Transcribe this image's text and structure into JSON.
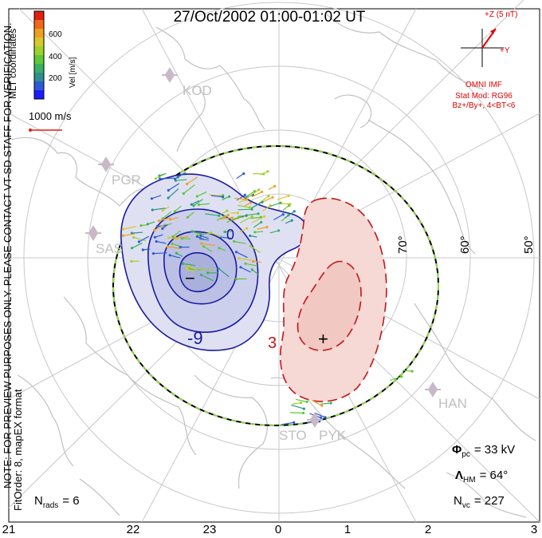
{
  "title": "27/Oct/2002 01:00-01:02 UT",
  "coordinate_label": "MLT coordinates",
  "colorbar": {
    "label": "Vel [m/s]",
    "ticks": [
      "600",
      "400",
      "200"
    ],
    "colors": [
      "#1c1cff",
      "#2d5bd6",
      "#2f8f8f",
      "#38b060",
      "#5cc83a",
      "#9fd12a",
      "#d8c82a",
      "#f0a020",
      "#f06818",
      "#e02010"
    ]
  },
  "scale_vector": {
    "label": "1000 m/s"
  },
  "imf": {
    "z_label": "+Z (5 nT)",
    "y_label": "+Y",
    "source": "OMNI IMF",
    "model": "Stat Mod: RG96",
    "condition": "Bz+/By+, 4<BT<6"
  },
  "watermark": "NOTE: FOR PREVIEW PURPOSES ONLY. PLEASE CONTACT VT-SD STAFF FOR VERIFICATION.",
  "fit_order": "FitOrder: 8, mapEX format",
  "stations": {
    "kod": "KOD",
    "pgr": "PGR",
    "sas": "SAS",
    "han": "HAN",
    "sto": "STO",
    "pyk": "PYK"
  },
  "latitudes": [
    "70°",
    "60°",
    "50°"
  ],
  "contours": {
    "neg_label": "-9",
    "min_marker": "−",
    "max_marker": "+",
    "pos_label": "3",
    "mid_label": "0"
  },
  "stats": {
    "phi_symbol": "Φ",
    "phi_sub": "pc",
    "phi_value": "= 33 kV",
    "lambda_symbol": "Λ",
    "lambda_sub": "HM",
    "lambda_value": "= 64°",
    "nvc_symbol": "N",
    "nvc_sub": "vc",
    "nvc_value": "= 227",
    "nrads_symbol": "N",
    "nrads_sub": "rads",
    "nrads_value": "= 6"
  },
  "mlt_axis": [
    "21",
    "22",
    "23",
    "0",
    "1",
    "2",
    "3"
  ],
  "colors": {
    "negative_contour": "#1a1aa0",
    "positive_contour": "#c01818",
    "negative_fill": "#d8dcf0",
    "positive_fill": "#f6d8d4",
    "grid": "#c8c8c8",
    "coast": "#c0c0c0",
    "text": "#000000",
    "imf_red": "#e00000"
  }
}
